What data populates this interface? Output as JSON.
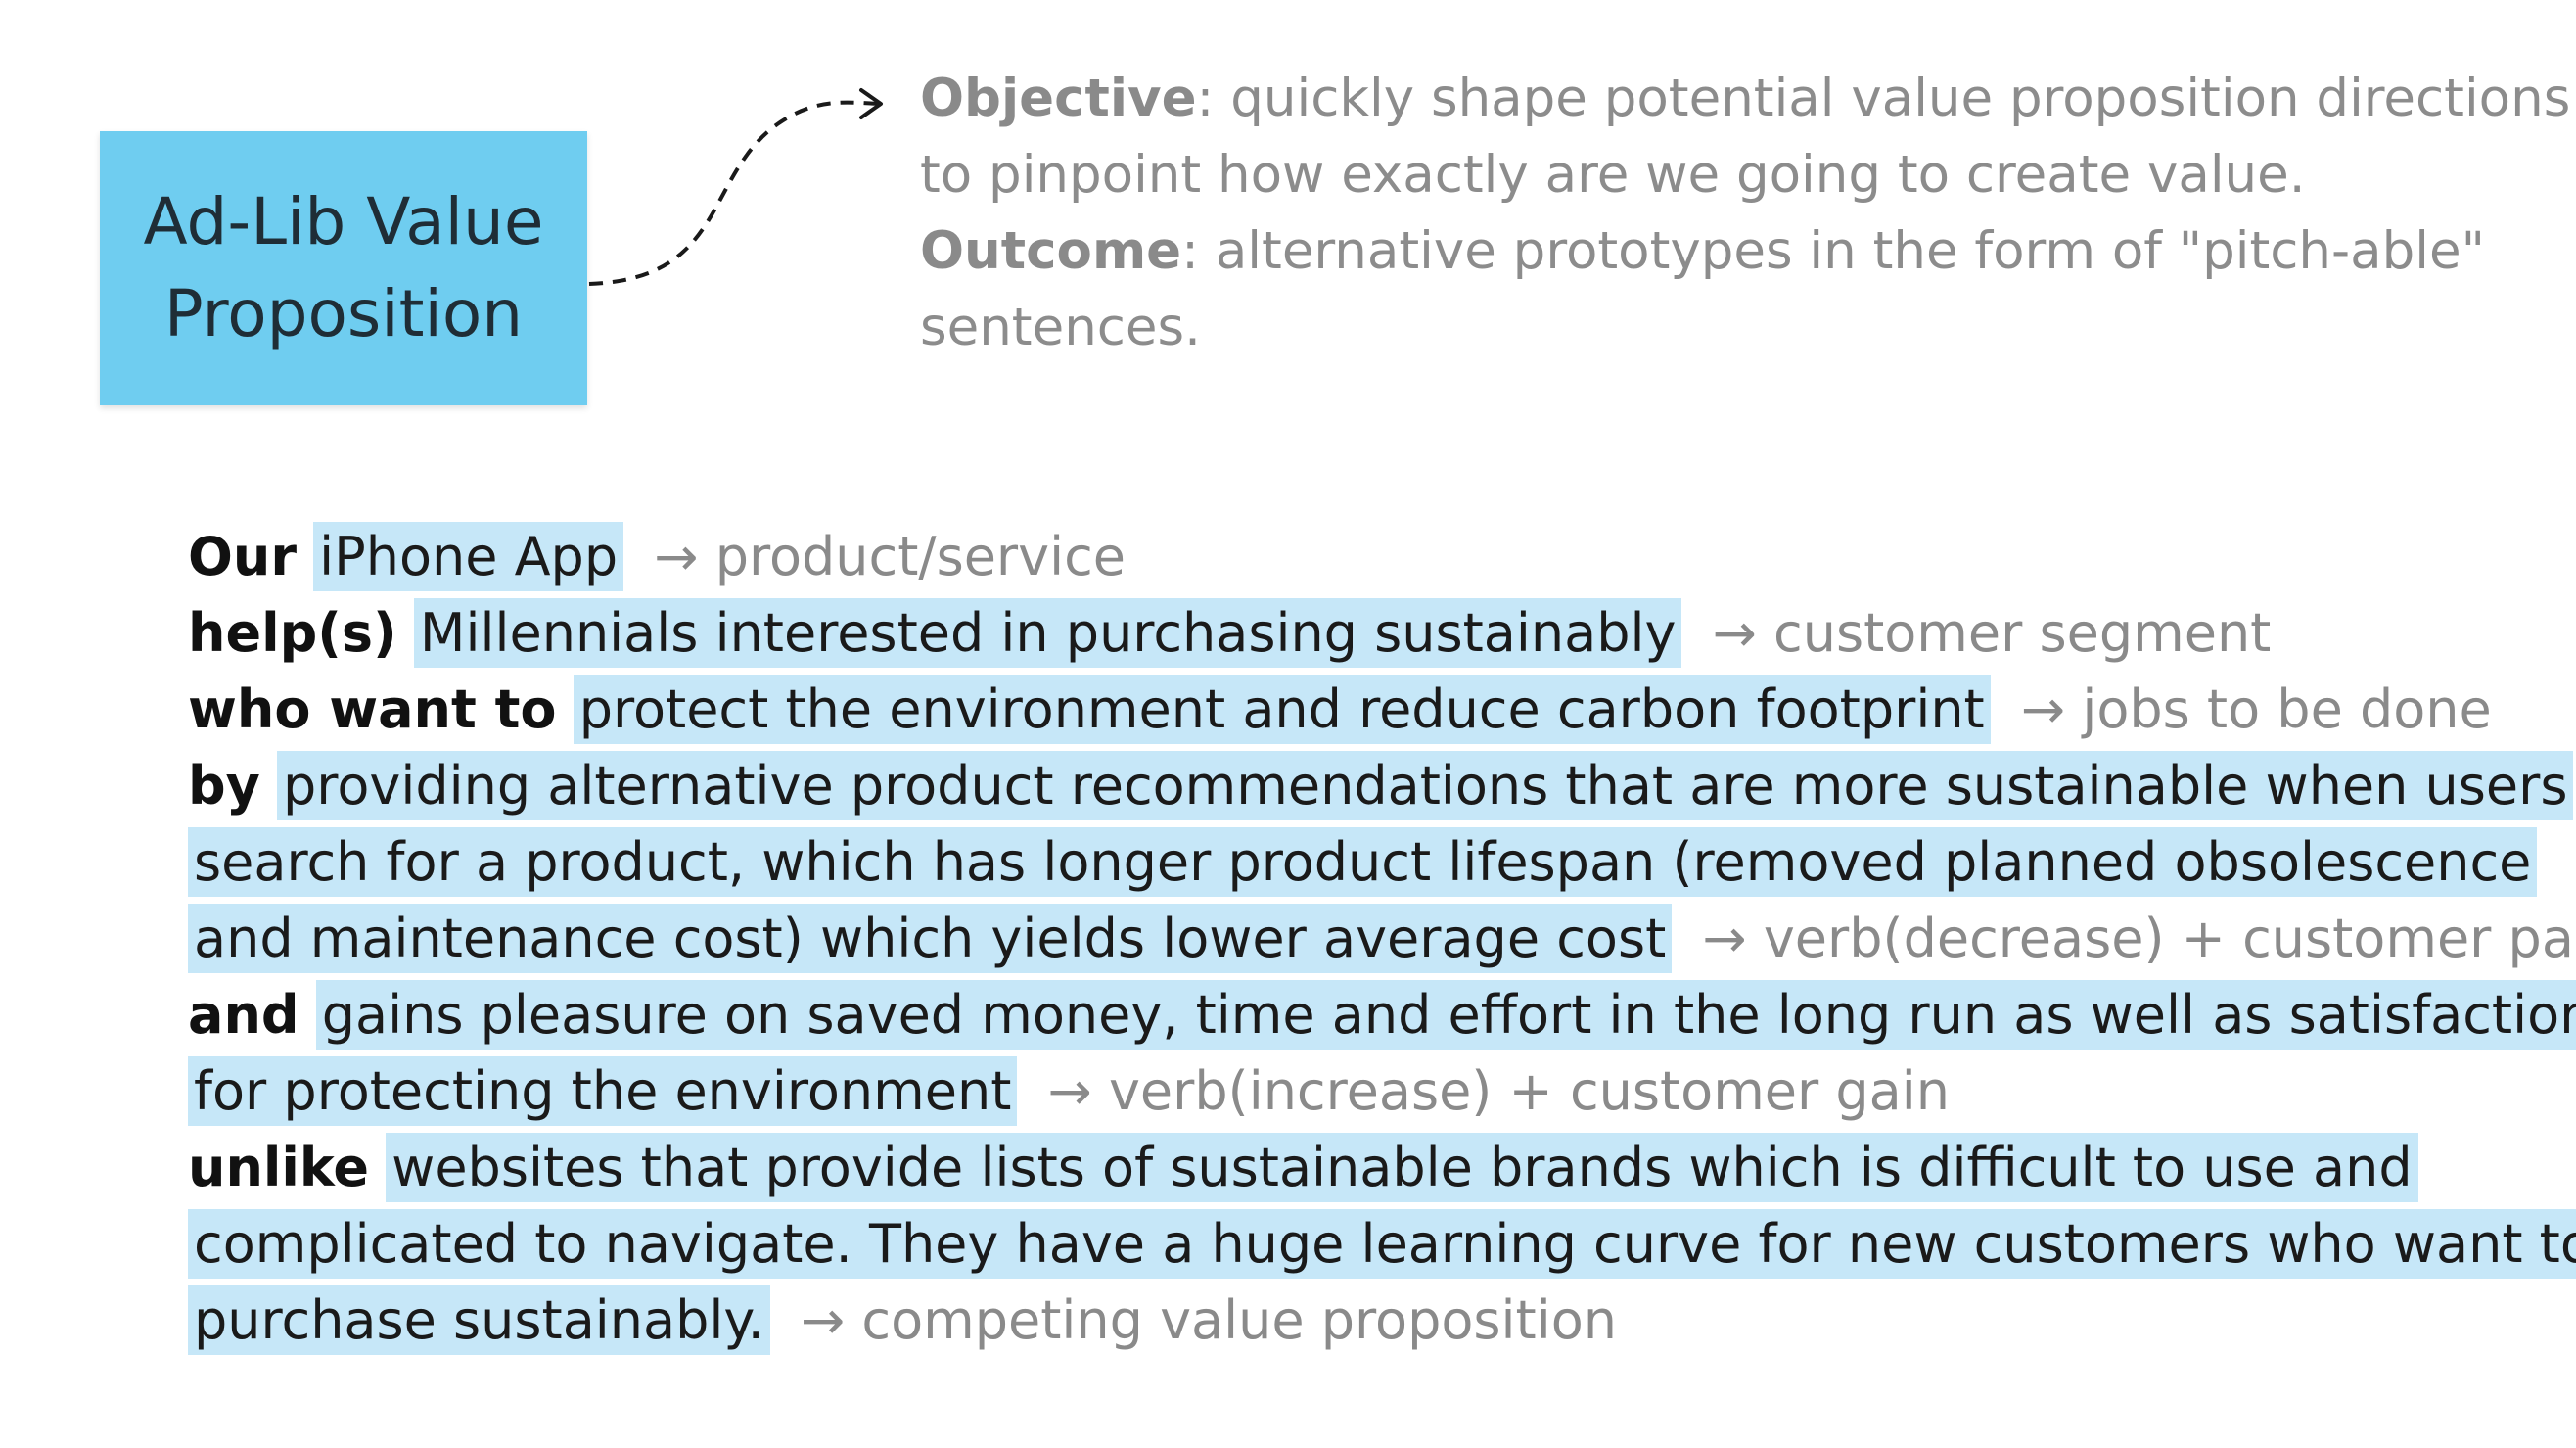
{
  "sticky": {
    "line1": "Ad-Lib Value",
    "line2": "Proposition",
    "color": "#6fcdf0"
  },
  "objective": {
    "label": "Objective",
    "line1": ": quickly shape potential value proposition directions",
    "line2": "to pinpoint how exactly are we going to create value."
  },
  "outcome": {
    "label": "Outcome",
    "line1": ": alternative prototypes in the form of \"pitch-able\"",
    "line2": "sentences."
  },
  "adlib": {
    "arrow": "→",
    "highlight_color": "#c6e7f8",
    "our": {
      "keyword": "Our",
      "fill": "iPhone App",
      "hint": "product/service"
    },
    "helps": {
      "keyword": "help(s)",
      "fill": "Millennials interested in purchasing sustainably",
      "hint": "customer segment"
    },
    "want": {
      "keyword": "who want to",
      "fill": "protect the environment and reduce carbon footprint",
      "hint": "jobs to be done"
    },
    "by": {
      "keyword": "by",
      "fill_line1": "providing alternative product recommendations that are more sustainable when users",
      "fill_line2": "search for a product, which has longer product lifespan (removed planned obsolescence",
      "fill_line3": "and maintenance cost) which yields lower average cost",
      "hint": "verb(decrease) + customer pain"
    },
    "and": {
      "keyword": "and",
      "fill_line1": "gains pleasure on saved money, time and effort in the long run as well as satisfaction",
      "fill_line2": "for protecting the environment",
      "hint": "verb(increase) + customer gain"
    },
    "unlike": {
      "keyword": "unlike",
      "fill_line1": "websites that provide lists of sustainable brands which is difficult to use and",
      "fill_line2": "complicated to navigate. They have a huge learning curve for new customers who want to",
      "fill_line3": "purchase sustainably.",
      "hint": "competing value proposition"
    }
  }
}
